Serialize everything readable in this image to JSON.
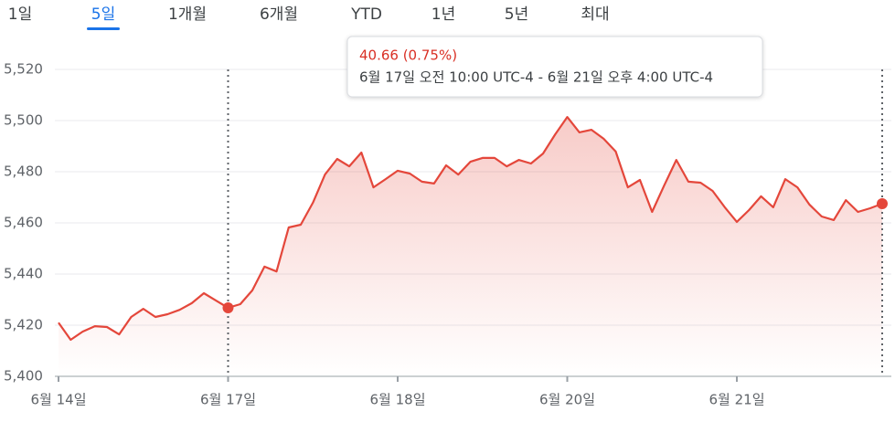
{
  "tabs": [
    "1일",
    "5일",
    "1개월",
    "6개월",
    "YTD",
    "1년",
    "5년",
    "최대"
  ],
  "selected_tab": 1,
  "chart_data": {
    "type": "line",
    "fill": true,
    "color": "#e4473b",
    "values": [
      5421,
      5414.3,
      5417.5,
      5419.6,
      5419.3,
      5416.4,
      5423.2,
      5426.4,
      5423.2,
      5424.3,
      5426,
      5428.6,
      5432.5,
      5429.6,
      5426.8,
      5428.2,
      5433.6,
      5442.9,
      5441,
      5458.2,
      5459.3,
      5467.9,
      5478.9,
      5485,
      5482.1,
      5487.5,
      5473.9,
      5477.1,
      5480.4,
      5479.3,
      5476.1,
      5475.4,
      5482.5,
      5478.9,
      5483.9,
      5485.4,
      5485.4,
      5482.1,
      5484.6,
      5483.2,
      5487.1,
      5494.6,
      5501.4,
      5495.4,
      5496.4,
      5492.9,
      5487.9,
      5473.9,
      5476.8,
      5464.3,
      5474.6,
      5484.6,
      5476.1,
      5475.7,
      5472.5,
      5466.1,
      5460.4,
      5465,
      5470.4,
      5466.1,
      5477.1,
      5473.9,
      5467.1,
      5462.5,
      5461.1,
      5468.9,
      5464.3,
      5465.7,
      5467.5
    ],
    "markers": [
      14,
      68
    ],
    "xlim": [
      0,
      68
    ],
    "xticks": [
      {
        "value": 0,
        "label": "6월 14일"
      },
      {
        "value": 14,
        "label": "6월 17일"
      },
      {
        "value": 28,
        "label": "6월 18일"
      },
      {
        "value": 42,
        "label": "6월 20일"
      },
      {
        "value": 56,
        "label": "6월 21일"
      }
    ],
    "ylim": [
      5400,
      5520
    ],
    "yticks": [
      {
        "value": 5400,
        "label": "5,400"
      },
      {
        "value": 5420,
        "label": "5,420"
      },
      {
        "value": 5440,
        "label": "5,440"
      },
      {
        "value": 5460,
        "label": "5,460"
      },
      {
        "value": 5480,
        "label": "5,480"
      },
      {
        "value": 5500,
        "label": "5,500"
      },
      {
        "value": 5520,
        "label": "5,520"
      }
    ],
    "grid": true,
    "tooltip": {
      "change": "40.66 (0.75%)",
      "range": "6월 17일 오전 10:00 UTC-4 - 6월 21일 오후 4:00 UTC-4"
    }
  }
}
